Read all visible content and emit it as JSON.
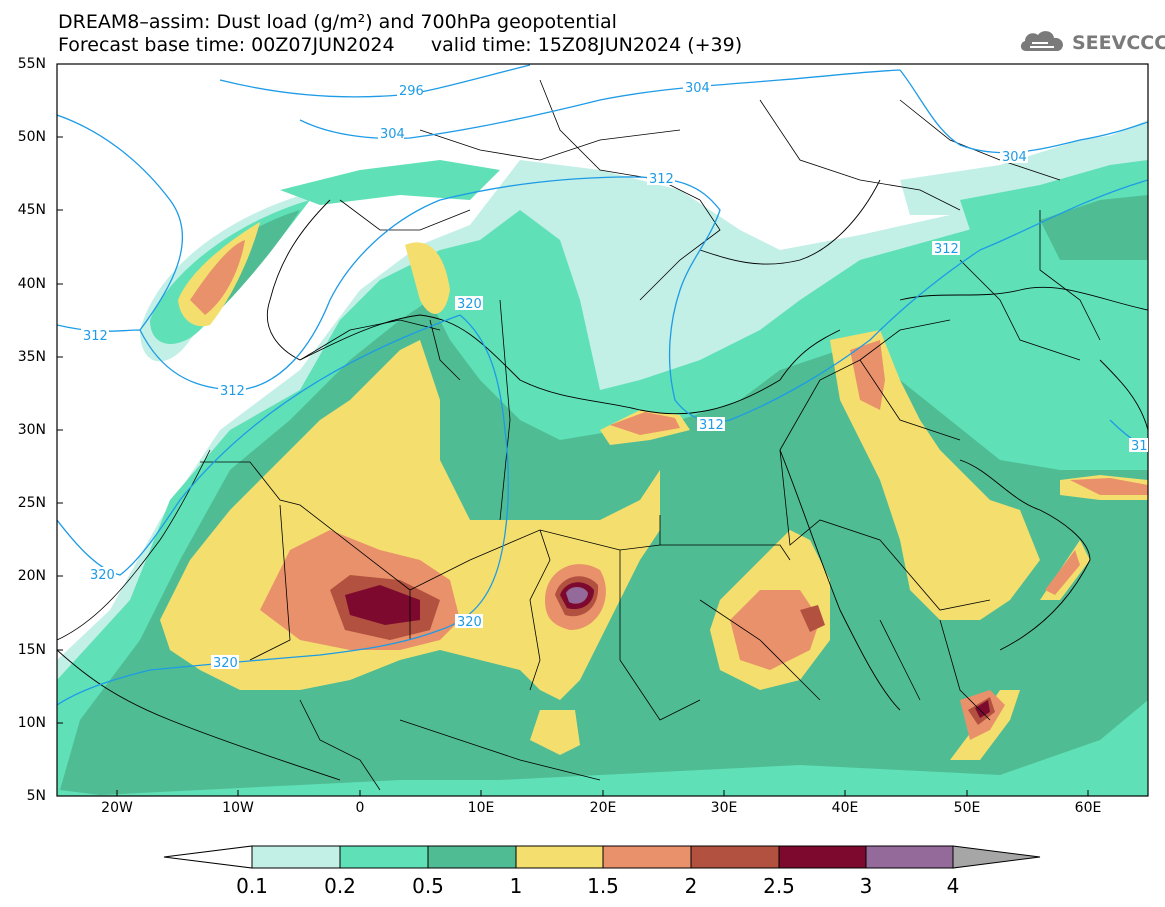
{
  "title_line1": "DREAM8–assim: Dust load (g/m²) and 700hPa geopotential",
  "title_line2": "Forecast base time: 00Z07JUN2024      valid time: 15Z08JUN2024 (+39)",
  "logo_text": "SEEVCCC",
  "lat_labels": [
    "55N",
    "50N",
    "45N",
    "40N",
    "35N",
    "30N",
    "25N",
    "20N",
    "15N",
    "10N",
    "5N"
  ],
  "lon_labels": [
    "20W",
    "10W",
    "0",
    "10E",
    "20E",
    "30E",
    "40E",
    "50E",
    "60E"
  ],
  "contour_labels": [
    "296",
    "304",
    "304",
    "304",
    "312",
    "312",
    "312",
    "312",
    "312",
    "31",
    "320",
    "320",
    "320",
    "320"
  ],
  "colorbar": {
    "labels": [
      "0.1",
      "0.2",
      "0.5",
      "1",
      "1.5",
      "2",
      "2.5",
      "3",
      "4"
    ],
    "colors": [
      "#c2efe6",
      "#5fe0b7",
      "#4fbc93",
      "#f4df6e",
      "#e9916a",
      "#b2513f",
      "#7d0a2e",
      "#936a9a"
    ],
    "under_color": "#ffffff",
    "over_color": "#a6a6a6"
  },
  "map_colors": {
    "ocean_land_bg": "#ffffff",
    "border": "#000000",
    "contour": "#1e9be6"
  }
}
